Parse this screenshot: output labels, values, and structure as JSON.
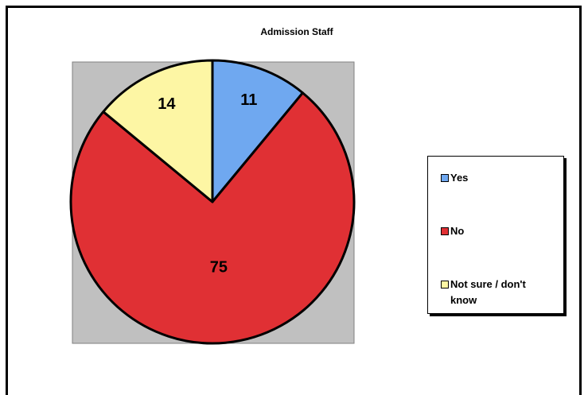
{
  "chart_data": {
    "type": "pie",
    "title": "Admission Staff",
    "categories": [
      "Yes",
      "No",
      "Not sure / don't know"
    ],
    "values": [
      11,
      75,
      14
    ],
    "colors": [
      "#6fa8f0",
      "#e03034",
      "#fdf6a4"
    ],
    "legend": "right"
  }
}
